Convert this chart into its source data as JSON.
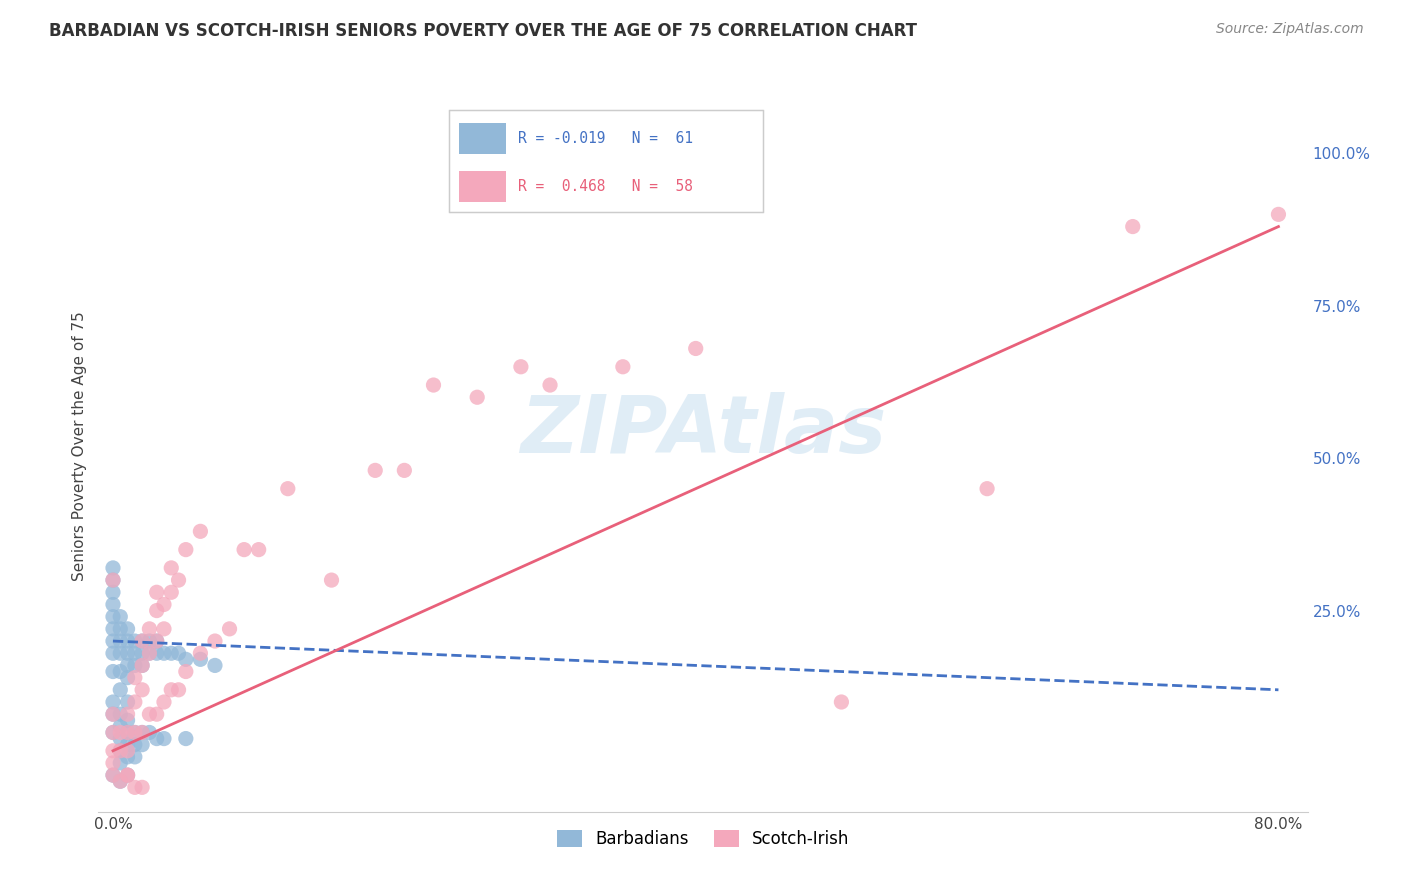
{
  "title": "BARBADIAN VS SCOTCH-IRISH SENIORS POVERTY OVER THE AGE OF 75 CORRELATION CHART",
  "source": "Source: ZipAtlas.com",
  "ylabel": "Seniors Poverty Over the Age of 75",
  "background_color": "#ffffff",
  "grid_color": "#dddddd",
  "watermark": "ZIPAtlas",
  "xlim": [
    -0.01,
    0.82
  ],
  "ylim": [
    -0.08,
    1.12
  ],
  "barbadian_color": "#92b8d8",
  "scotchirish_color": "#f4a8bc",
  "barbadian_line_color": "#4472c4",
  "scotchirish_line_color": "#e8607a",
  "barbadian_scatter_x": [
    0.0,
    0.0,
    0.0,
    0.0,
    0.0,
    0.0,
    0.0,
    0.0,
    0.0,
    0.0,
    0.005,
    0.005,
    0.005,
    0.005,
    0.005,
    0.005,
    0.005,
    0.01,
    0.01,
    0.01,
    0.01,
    0.01,
    0.01,
    0.01,
    0.015,
    0.015,
    0.015,
    0.02,
    0.02,
    0.02,
    0.025,
    0.025,
    0.03,
    0.03,
    0.035,
    0.04,
    0.045,
    0.05,
    0.06,
    0.07,
    0.0,
    0.0,
    0.0,
    0.005,
    0.005,
    0.005,
    0.005,
    0.005,
    0.01,
    0.01,
    0.01,
    0.01,
    0.015,
    0.015,
    0.015,
    0.02,
    0.02,
    0.025,
    0.03,
    0.035,
    0.05
  ],
  "barbadian_scatter_y": [
    0.2,
    0.22,
    0.24,
    0.26,
    0.28,
    0.3,
    0.32,
    0.18,
    0.15,
    0.1,
    0.2,
    0.22,
    0.24,
    0.18,
    0.15,
    0.12,
    0.08,
    0.2,
    0.22,
    0.18,
    0.16,
    0.14,
    0.1,
    0.07,
    0.2,
    0.18,
    0.16,
    0.2,
    0.18,
    0.16,
    0.2,
    0.18,
    0.2,
    0.18,
    0.18,
    0.18,
    0.18,
    0.17,
    0.17,
    0.16,
    0.05,
    -0.02,
    0.08,
    0.06,
    0.04,
    0.02,
    0.0,
    -0.03,
    0.05,
    0.03,
    0.01,
    -0.02,
    0.05,
    0.03,
    0.01,
    0.05,
    0.03,
    0.05,
    0.04,
    0.04,
    0.04
  ],
  "scotchirish_scatter_x": [
    0.0,
    0.0,
    0.0,
    0.0,
    0.005,
    0.005,
    0.01,
    0.01,
    0.01,
    0.01,
    0.015,
    0.015,
    0.015,
    0.02,
    0.02,
    0.02,
    0.02,
    0.025,
    0.025,
    0.025,
    0.03,
    0.03,
    0.03,
    0.03,
    0.035,
    0.035,
    0.035,
    0.04,
    0.04,
    0.04,
    0.045,
    0.045,
    0.05,
    0.05,
    0.06,
    0.06,
    0.07,
    0.08,
    0.09,
    0.1,
    0.12,
    0.15,
    0.18,
    0.2,
    0.22,
    0.25,
    0.28,
    0.3,
    0.35,
    0.4,
    0.5,
    0.6,
    0.7,
    0.8,
    0.0,
    0.0,
    0.005,
    0.01,
    0.015,
    0.02
  ],
  "scotchirish_scatter_y": [
    0.05,
    0.08,
    0.02,
    0.0,
    0.02,
    0.05,
    0.05,
    0.08,
    0.02,
    -0.02,
    0.1,
    0.14,
    0.05,
    0.12,
    0.16,
    0.2,
    0.05,
    0.18,
    0.22,
    0.08,
    0.2,
    0.25,
    0.28,
    0.08,
    0.22,
    0.26,
    0.1,
    0.28,
    0.32,
    0.12,
    0.3,
    0.12,
    0.35,
    0.15,
    0.38,
    0.18,
    0.2,
    0.22,
    0.35,
    0.35,
    0.45,
    0.3,
    0.48,
    0.48,
    0.62,
    0.6,
    0.65,
    0.62,
    0.65,
    0.68,
    0.1,
    0.45,
    0.88,
    0.9,
    0.3,
    -0.02,
    -0.03,
    -0.02,
    -0.04,
    -0.04
  ]
}
